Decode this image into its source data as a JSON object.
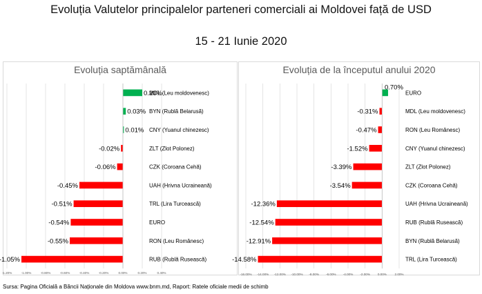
{
  "title": "Evoluția Valutelor principalelor parteneri comerciali ai Moldovei față de USD",
  "subtitle": "15 - 21 Iunie 2020",
  "source": "Sursa: Pagina Oficială a Băncii Naționale din Moldova www.bnm.md, Raport: Ratele oficiale medii de schimb",
  "colors": {
    "positive": "#00b050",
    "negative": "#ff0000",
    "grid": "#d9d9d9",
    "title": "#595959"
  },
  "chart_data": [
    {
      "type": "bar",
      "orientation": "horizontal",
      "title": "Evoluția saptămânală",
      "categories": [
        "MDL (Leu moldovenesc)",
        "BYN (Rublă Belarusă)",
        "CNY (Yuanul chinezesc)",
        "ZLT (Zlot Polonez)",
        "CZK (Coroana Cehă)",
        "UAH (Hrivna Ucraineană)",
        "TRL (Lira Turcească)",
        "EURO",
        "RON (Leu Românesc)",
        "RUB (Rublă Rusească)"
      ],
      "values": [
        0.2,
        0.03,
        0.01,
        -0.02,
        -0.06,
        -0.45,
        -0.51,
        -0.54,
        -0.55,
        -1.05
      ],
      "value_labels": [
        "0.20%",
        "0.03%",
        "0.01%",
        "-0.02%",
        "-0.06%",
        "-0.45%",
        "-0.51%",
        "-0.54%",
        "-0.55%",
        "-1.05%"
      ],
      "xlim": [
        -1.2,
        0.4
      ],
      "xticks": [
        -1.2,
        -1.0,
        -0.8,
        -0.6,
        -0.4,
        -0.2,
        0.0,
        0.2,
        0.4
      ],
      "xtick_labels": [
        "-1.20%",
        "-1.00%",
        "-0.80%",
        "-0.60%",
        "-0.40%",
        "-0.20%",
        "0.00%",
        "0.20%",
        "0.40%"
      ],
      "grid": true
    },
    {
      "type": "bar",
      "orientation": "horizontal",
      "title": "Evoluția de la începutul anului 2020",
      "categories": [
        "EURO",
        "MDL (Leu moldovenesc)",
        "RON (Leu Românesc)",
        "CNY (Yuanul chinezesc)",
        "ZLT (Zlot Polonez)",
        "CZK (Coroana Cehă)",
        "UAH (Hrivna Ucraineană)",
        "RUB (Rublă Rusească)",
        "BYN (Rublă Belarusă)",
        "TRL (Lira Turcească)"
      ],
      "values": [
        0.7,
        -0.31,
        -0.47,
        -1.52,
        -3.39,
        -3.54,
        -12.36,
        -12.54,
        -12.91,
        -14.58
      ],
      "value_labels": [
        "0.70%",
        "-0.31%",
        "-0.47%",
        "-1.52%",
        "-3.39%",
        "-3.54%",
        "-12.36%",
        "-12.54%",
        "-12.91%",
        "-14.58%"
      ],
      "xlim": [
        -16,
        2
      ],
      "xticks": [
        -16,
        -14,
        -12,
        -10,
        -8,
        -6,
        -4,
        -2,
        0,
        2
      ],
      "xtick_labels": [
        "-16.00%",
        "-14.00%",
        "-12.00%",
        "-10.00%",
        "-8.00%",
        "-6.00%",
        "-4.00%",
        "-2.00%",
        "0.00%",
        "2.00%"
      ],
      "grid": true
    }
  ]
}
